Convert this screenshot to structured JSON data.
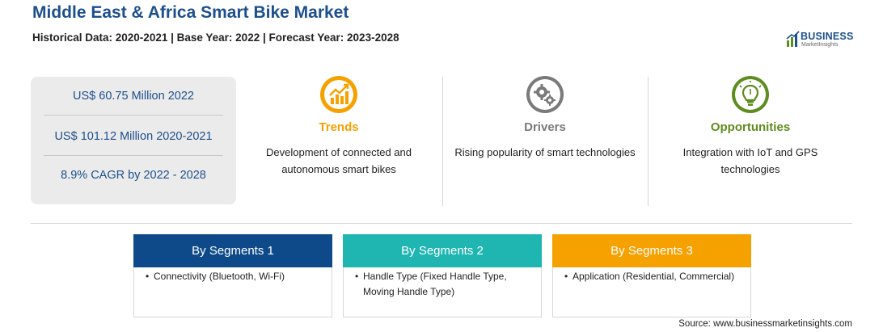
{
  "header": {
    "title": "Middle East & Africa Smart Bike Market",
    "subtitle": "Historical Data: 2020-2021 | Base Year: 2022 | Forecast Year: 2023-2028"
  },
  "logo": {
    "line1": "BUSINESS",
    "line2": "MarketInsights",
    "color": "#1d4f8c"
  },
  "stats": [
    "US$ 60.75 Million 2022",
    "US$ 101.12 Million 2020-2021",
    "8.9% CAGR by 2022 - 2028"
  ],
  "columns": [
    {
      "heading": "Trends",
      "description": "Development of connected and autonomous smart bikes",
      "color": "#f5a100",
      "icon": "chart-icon"
    },
    {
      "heading": "Drivers",
      "description": "Rising popularity of smart technologies",
      "color": "#7a7a7a",
      "icon": "gears-icon"
    },
    {
      "heading": "Opportunities",
      "description": "Integration with IoT and GPS technologies",
      "color": "#5f8c1f",
      "icon": "lightbulb-icon"
    }
  ],
  "segments": [
    {
      "title": "By Segments 1",
      "color": "#0e4a8a",
      "items": [
        "Connectivity (Bluetooth, Wi-Fi)"
      ]
    },
    {
      "title": "By Segments 2",
      "color": "#1fb5b0",
      "items": [
        "Handle Type (Fixed Handle Type, Moving Handle Type)"
      ]
    },
    {
      "title": "By Segments 3",
      "color": "#f5a100",
      "items": [
        "Application (Residential, Commercial)"
      ]
    }
  ],
  "source": "Source: www.businessmarketinsights.com"
}
